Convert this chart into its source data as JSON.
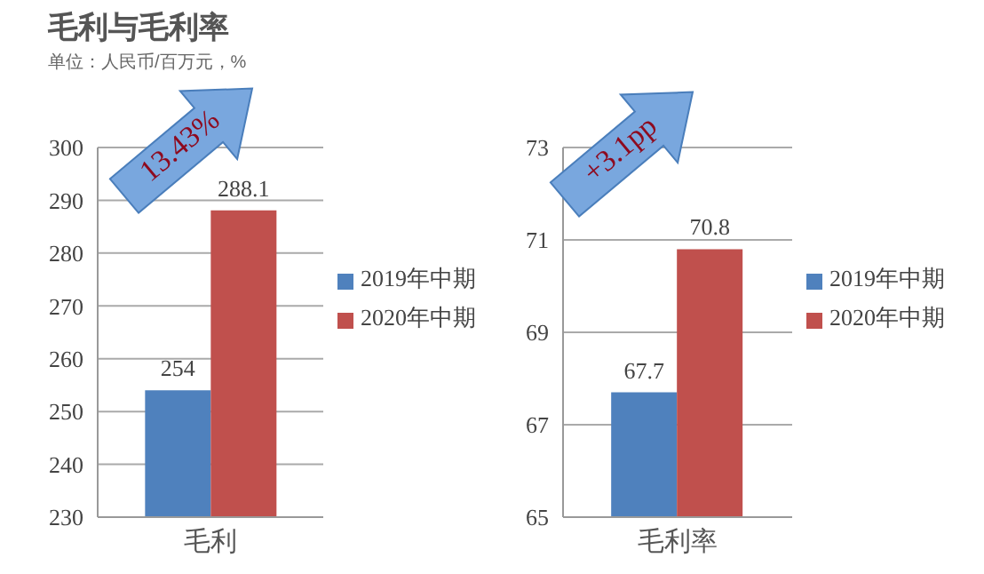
{
  "chart_data": [
    {
      "type": "bar",
      "title": "毛利与毛利率",
      "subtitle": "单位：人民币/百万元，%",
      "categories": [
        "毛利"
      ],
      "series": [
        {
          "name": "2019年中期",
          "color": "#4f81bd",
          "values": [
            254
          ]
        },
        {
          "name": "2020年中期",
          "color": "#c0504d",
          "values": [
            288.1
          ]
        }
      ],
      "ylim": [
        230,
        300
      ],
      "yticks": [
        230,
        240,
        250,
        260,
        270,
        280,
        290,
        300
      ],
      "grid": "y",
      "legend": "right",
      "data_labels": true,
      "annotations": [
        "13.43%"
      ]
    },
    {
      "type": "bar",
      "categories": [
        "毛利率"
      ],
      "series": [
        {
          "name": "2019年中期",
          "color": "#4f81bd",
          "values": [
            67.7
          ]
        },
        {
          "name": "2020年中期",
          "color": "#c0504d",
          "values": [
            70.8
          ]
        }
      ],
      "ylim": [
        65,
        73
      ],
      "yticks": [
        65,
        67,
        69,
        71,
        73
      ],
      "grid": "y",
      "legend": "right",
      "data_labels": true,
      "annotations": [
        "+3.1pp"
      ]
    }
  ]
}
